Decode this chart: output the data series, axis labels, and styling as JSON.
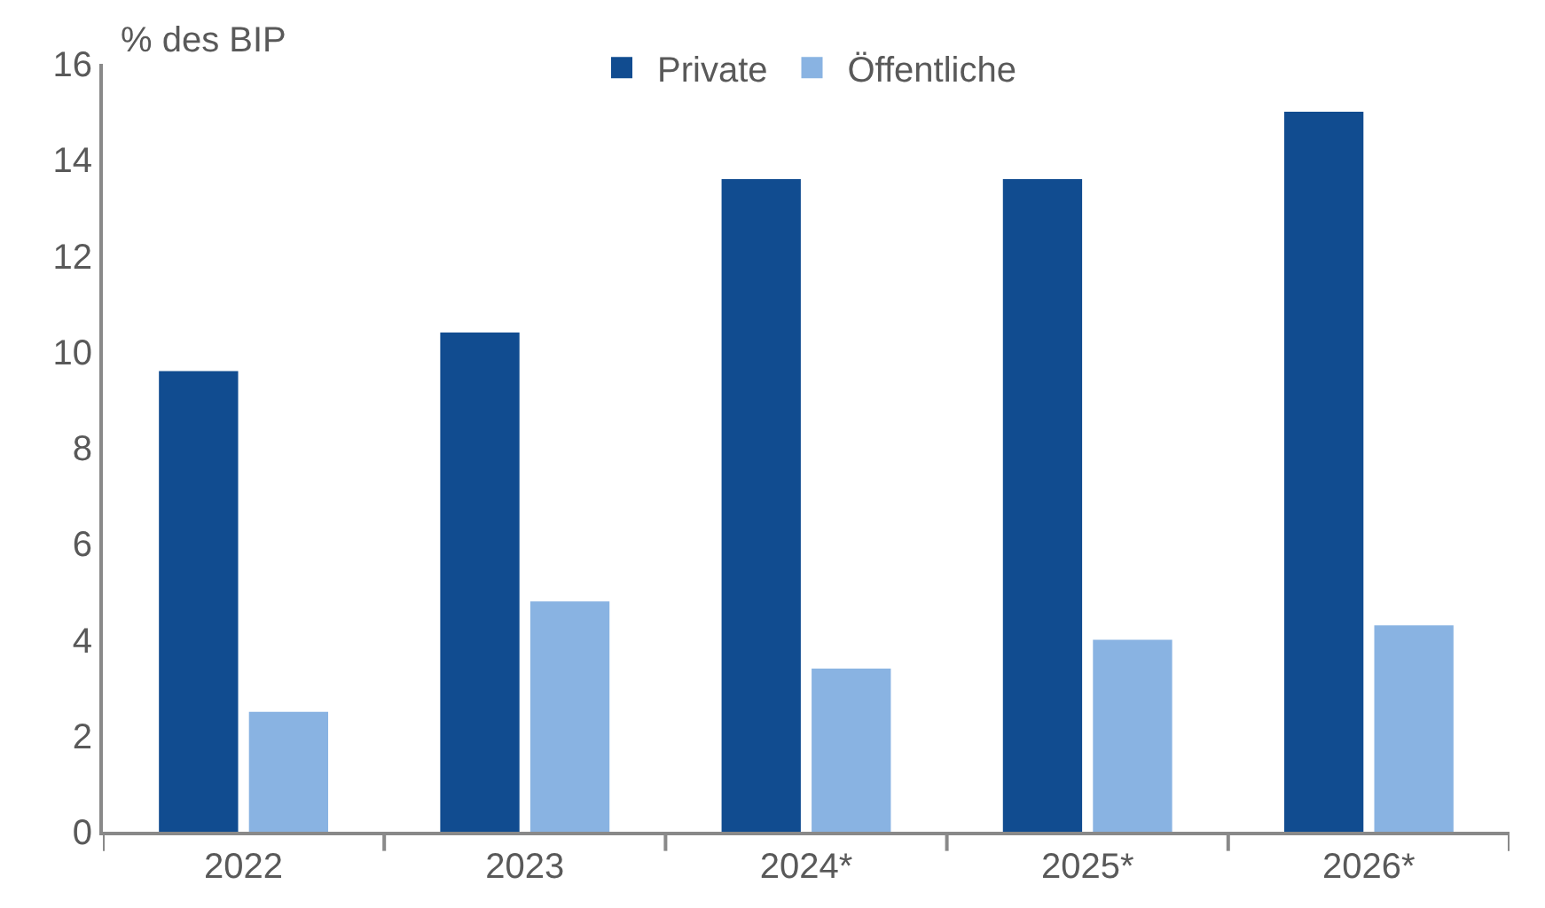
{
  "chart_data": {
    "type": "bar",
    "ylabel": "% des BIP",
    "categories": [
      "2022",
      "2023",
      "2024*",
      "2025*",
      "2026*"
    ],
    "series": [
      {
        "name": "Private",
        "color": "#114c90",
        "values": [
          9.6,
          10.4,
          13.6,
          13.6,
          15.0
        ]
      },
      {
        "name": "Öffentliche",
        "color": "#89b3e2",
        "values": [
          2.5,
          4.8,
          3.4,
          4.0,
          4.3
        ]
      }
    ],
    "ylim": [
      0,
      16
    ],
    "yticks": [
      0,
      2,
      4,
      6,
      8,
      10,
      12,
      14,
      16
    ],
    "legend": "top"
  }
}
